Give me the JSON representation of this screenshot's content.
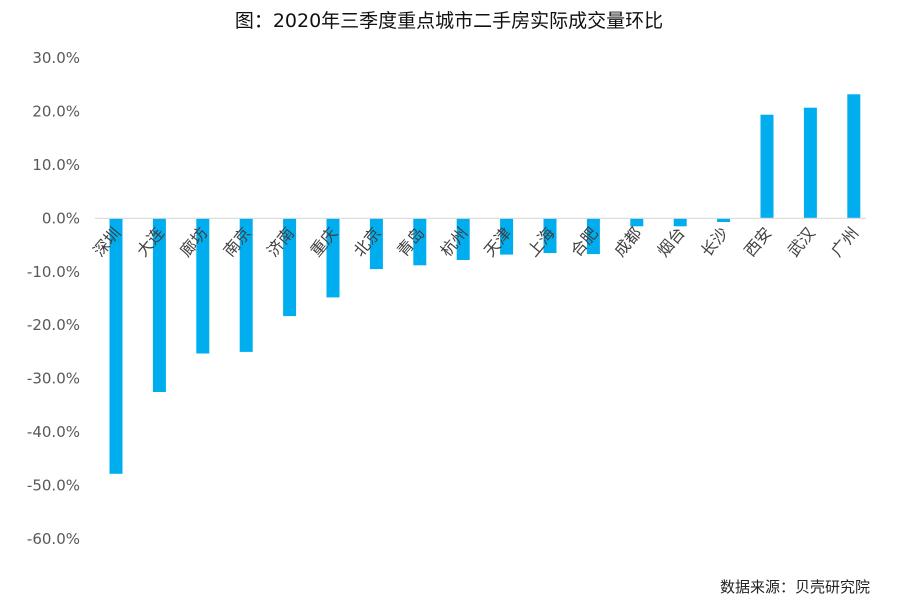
{
  "title": "图：2020年三季度重点城市二手房实际成交量环比",
  "source": "数据来源：贝壳研究院",
  "chart_data": {
    "type": "bar",
    "title": "图：2020年三季度重点城市二手房实际成交量环比",
    "categories": [
      "深圳",
      "大连",
      "廊坊",
      "南京",
      "济南",
      "重庆",
      "北京",
      "青岛",
      "杭州",
      "天津",
      "上海",
      "合肥",
      "成都",
      "烟台",
      "长沙",
      "西安",
      "武汉",
      "广州"
    ],
    "values": [
      -47.8,
      -32.5,
      -25.3,
      -25.0,
      -18.3,
      -14.8,
      -9.5,
      -8.8,
      -7.8,
      -6.8,
      -6.5,
      -6.7,
      -1.5,
      -1.5,
      -0.7,
      19.4,
      20.7,
      23.2
    ],
    "y_ticks": [
      "30.0%",
      "20.0%",
      "10.0%",
      "0.0%",
      "-10.0%",
      "-20.0%",
      "-30.0%",
      "-40.0%",
      "-50.0%",
      "-60.0%"
    ],
    "ylim": [
      -60,
      30
    ],
    "unit": "%",
    "grid": false,
    "legend": "none",
    "bar_color": "#00AEEF",
    "zero_line_color": "#D9D9D9"
  }
}
